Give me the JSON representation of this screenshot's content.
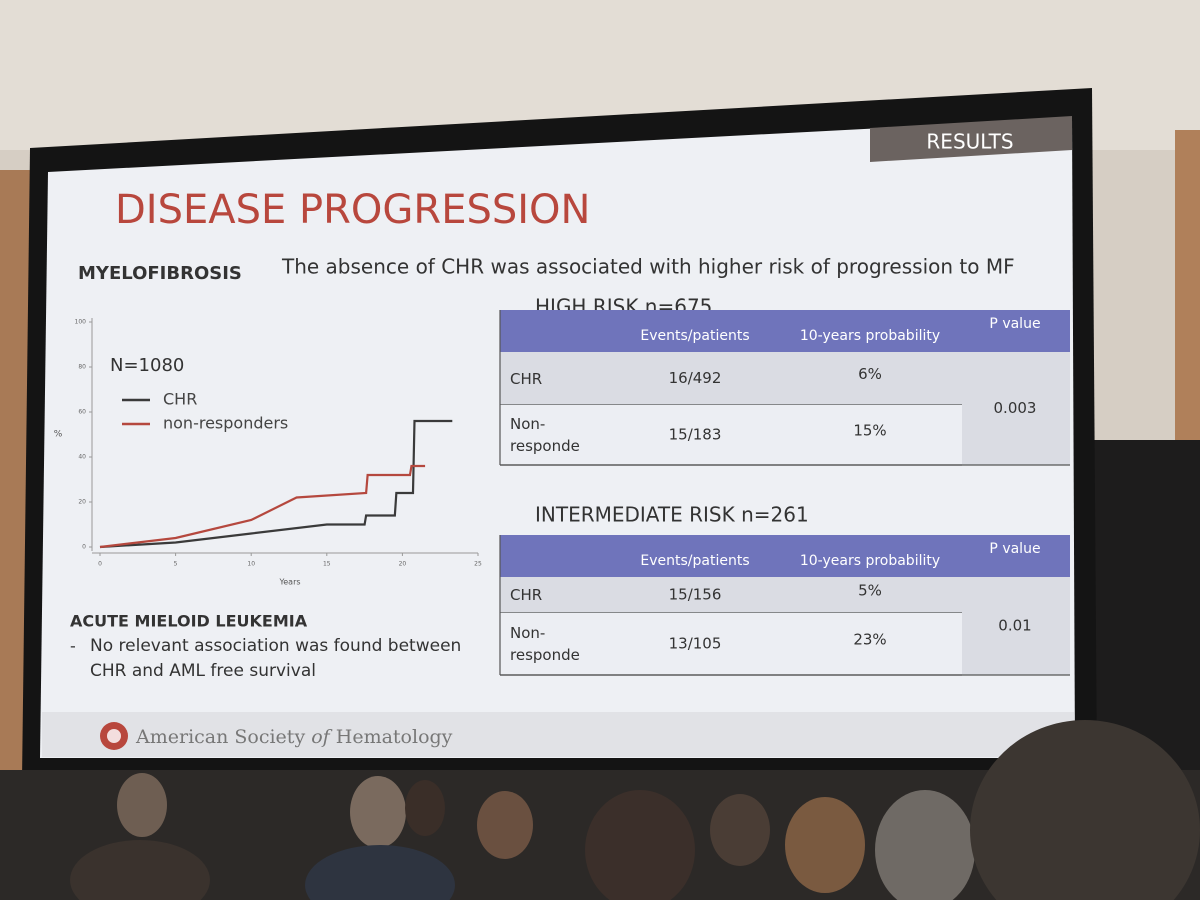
{
  "slide": {
    "section": "RESULTS",
    "title": "DISEASE PROGRESSION",
    "subtitle_label": "MYELOFIBROSIS",
    "subtitle": "The absence of CHR was associated with higher risk of progression to MF",
    "chart": {
      "type": "line",
      "annotation": "N=1080",
      "xlabel": "Years",
      "ylabel": "%",
      "xlim": [
        0,
        25
      ],
      "ylim": [
        0,
        100
      ],
      "xticks": [
        0,
        5,
        10,
        15,
        20,
        25
      ],
      "yticks": [
        0,
        20,
        40,
        60,
        80,
        100
      ],
      "series": [
        {
          "name": "CHR",
          "color": "#3a3a3a",
          "x": [
            0,
            5,
            10,
            15,
            17.5,
            17.6,
            19.5,
            19.6,
            20.7,
            20.8,
            23.3
          ],
          "values": [
            0,
            2,
            6,
            10,
            10,
            14,
            14,
            24,
            24,
            56,
            56
          ]
        },
        {
          "name": "non-responders",
          "color": "#b5483e",
          "x": [
            0,
            5,
            10,
            13,
            17.6,
            17.7,
            20.5,
            20.6,
            21.5
          ],
          "values": [
            0,
            4,
            12,
            22,
            24,
            32,
            32,
            36,
            36
          ]
        }
      ]
    },
    "aml": {
      "heading": "ACUTE MIELOID LEUKEMIA",
      "bullet": "-",
      "text": "No relevant association was found between CHR and AML free survival"
    },
    "tables": [
      {
        "title": "HIGH RISK n=675",
        "columns": [
          "Events/patients",
          "10-years probability",
          "P value"
        ],
        "rows": [
          {
            "label": "CHR",
            "events": "16/492",
            "probability": "6%"
          },
          {
            "label": "Non-responders",
            "events": "15/183",
            "probability": "15%"
          }
        ],
        "p_value": "0.003"
      },
      {
        "title": "INTERMEDIATE RISK n=261",
        "columns": [
          "Events/patients",
          "10-years probability",
          "P value"
        ],
        "rows": [
          {
            "label": "CHR",
            "events": "15/156",
            "probability": "5%"
          },
          {
            "label": "Non-responders",
            "events": "13/105",
            "probability": "23%"
          }
        ],
        "p_value": "0.01"
      }
    ],
    "footer": {
      "part1": "American Society",
      "part2": "of",
      "part3": "Hematology"
    }
  }
}
